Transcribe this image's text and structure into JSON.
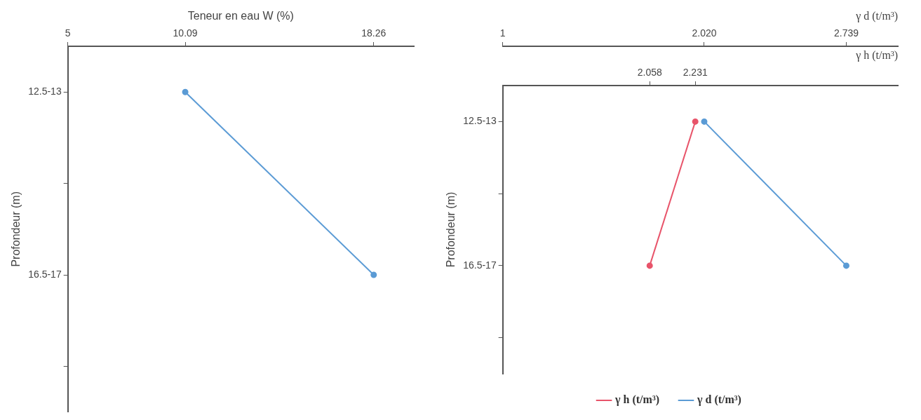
{
  "chart_data": [
    {
      "type": "line",
      "orientation": "horizontal",
      "xlabel": "Teneur en eau W (%)",
      "ylabel": "Profondeur (m)",
      "categories": [
        "12.5-13",
        null,
        "16.5-17",
        null
      ],
      "xlim": [
        5,
        20
      ],
      "xticks": [
        5,
        10.09,
        18.26
      ],
      "grid": false,
      "legend": false,
      "marker": "circle",
      "line_style": "solid",
      "series": [
        {
          "color": "#5b9bd5",
          "values": [
            10.09,
            null,
            18.26,
            null
          ]
        }
      ]
    },
    {
      "type": "line",
      "orientation": "horizontal",
      "ylabel": "Profondeur (m)",
      "categories": [
        "12.5-13",
        null,
        "16.5-17",
        null
      ],
      "xlabel": "γ h (t/m³)",
      "xlim": [
        1.5,
        3
      ],
      "xticks": [
        {
          "value": 2.058,
          "label": "2.058"
        },
        {
          "value": 2.231,
          "label": "2.231"
        }
      ],
      "x2label": "γ d (t/m³)",
      "x2lim": [
        1,
        3
      ],
      "x2ticks": [
        1,
        {
          "value": 2.02,
          "label": "2.020"
        },
        {
          "value": 2.739,
          "label": "2.739"
        }
      ],
      "grid": false,
      "legend": "bottom",
      "marker": "circle",
      "line_style": "solid",
      "series": [
        {
          "name": "γ h (t/m³)",
          "color": "#e8546a",
          "values": [
            2.231,
            null,
            2.058,
            null
          ]
        },
        {
          "name": "γ d (t/m³)",
          "color": "#5b9bd5",
          "axis": "x2",
          "values": [
            2.02,
            null,
            2.739,
            null
          ]
        }
      ]
    }
  ]
}
